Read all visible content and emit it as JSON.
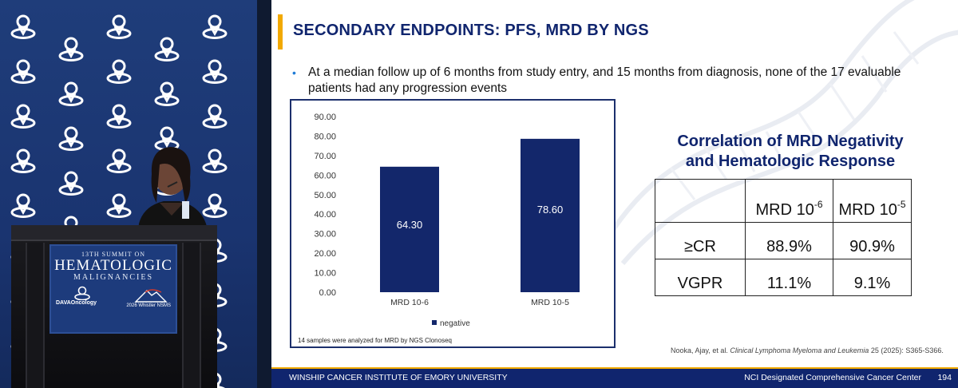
{
  "podium": {
    "line1": "13TH SUMMIT ON",
    "line2": "HEMATOLOGIC",
    "line3": "MALIGNANCIES",
    "sponsor": "DAVAOncology",
    "venue": "2026 Whistler NSMS"
  },
  "slide": {
    "title": "SECONDARY ENDPOINTS: PFS, MRD BY NGS",
    "bullet": "At a median follow up of 6 months from study entry, and 15 months from diagnosis, none of the 17 evaluable patients had any progression events",
    "chart_note": "14 samples were analyzed for MRD by NGS Clonoseq",
    "correlation_title_line1": "Correlation of MRD Negativity",
    "correlation_title_line2": "and Hematologic Response",
    "table": {
      "header": [
        "",
        "MRD 10",
        "MRD 10"
      ],
      "header_exponents": [
        "",
        "-6",
        "-5"
      ],
      "rows": [
        {
          "label": "≥CR",
          "v1": "88.9%",
          "v2": "90.9%"
        },
        {
          "label": "VGPR",
          "v1": "11.1%",
          "v2": "9.1%"
        }
      ]
    },
    "citation_prefix": "Nooka, Ajay, et al.",
    "citation_journal": "Clinical Lymphoma Myeloma and Leukemia",
    "citation_suffix": "25 (2025): S365-S366.",
    "footer_left": "WINSHIP CANCER INSTITUTE OF EMORY UNIVERSITY",
    "footer_right": "NCI Designated Comprehensive Cancer Center",
    "slide_number": "194"
  },
  "colors": {
    "navy": "#10256e",
    "accent": "#f2a900",
    "bar": "#13276b"
  },
  "chart_data": {
    "type": "bar",
    "categories": [
      "MRD 10-6",
      "MRD 10-5"
    ],
    "series": [
      {
        "name": "negative",
        "values": [
          64.3,
          78.6
        ]
      }
    ],
    "value_labels": [
      "64.30",
      "78.60"
    ],
    "yticks": [
      "0.00",
      "10.00",
      "20.00",
      "30.00",
      "40.00",
      "50.00",
      "60.00",
      "70.00",
      "80.00",
      "90.00"
    ],
    "ylim": [
      0,
      90
    ],
    "legend": "negative",
    "legend_position": "bottom-center",
    "title": "",
    "xlabel": "",
    "ylabel": ""
  }
}
